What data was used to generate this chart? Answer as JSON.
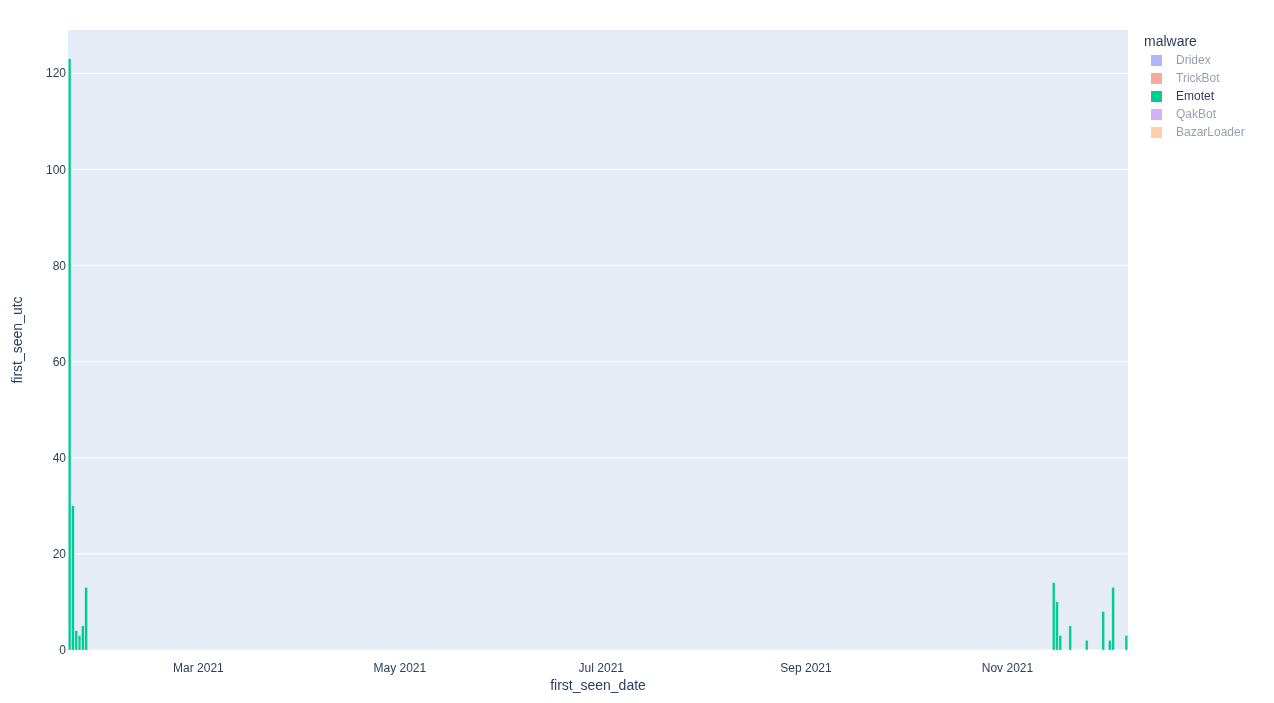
{
  "chart_data": {
    "type": "bar",
    "xlabel": "first_seen_date",
    "ylabel": "first_seen_utc",
    "legend_title": "malware",
    "xlim": [
      "2021-01-20T12:00",
      "2021-12-07T12:00"
    ],
    "xticks": [
      {
        "value": "2021-03-01",
        "label": "Mar 2021"
      },
      {
        "value": "2021-05-01",
        "label": "May 2021"
      },
      {
        "value": "2021-07-01",
        "label": "Jul 2021"
      },
      {
        "value": "2021-09-01",
        "label": "Sep 2021"
      },
      {
        "value": "2021-11-01",
        "label": "Nov 2021"
      }
    ],
    "ylim": [
      0,
      129
    ],
    "yticks": [
      0,
      20,
      40,
      60,
      80,
      100,
      120
    ],
    "grid": "y",
    "legend": "top right",
    "series": [
      {
        "name": "Dridex",
        "color": "#636efa"
      },
      {
        "name": "TrickBot",
        "color": "#ef553b"
      },
      {
        "name": "Emotet",
        "color": "#00cc96",
        "x": [
          "2021-01-21",
          "2021-01-22",
          "2021-01-23",
          "2021-01-24",
          "2021-01-25",
          "2021-01-26",
          "2021-11-15",
          "2021-11-16",
          "2021-11-17",
          "2021-11-20",
          "2021-11-25",
          "2021-11-30",
          "2021-12-02",
          "2021-12-03",
          "2021-12-07"
        ],
        "values": [
          123,
          30,
          4,
          3,
          5,
          13,
          14,
          10,
          3,
          5,
          2,
          8,
          2,
          13,
          3
        ]
      },
      {
        "name": "QakBot",
        "color": "#ab63fa"
      },
      {
        "name": "BazarLoader",
        "color": "#ffa15a"
      }
    ]
  }
}
